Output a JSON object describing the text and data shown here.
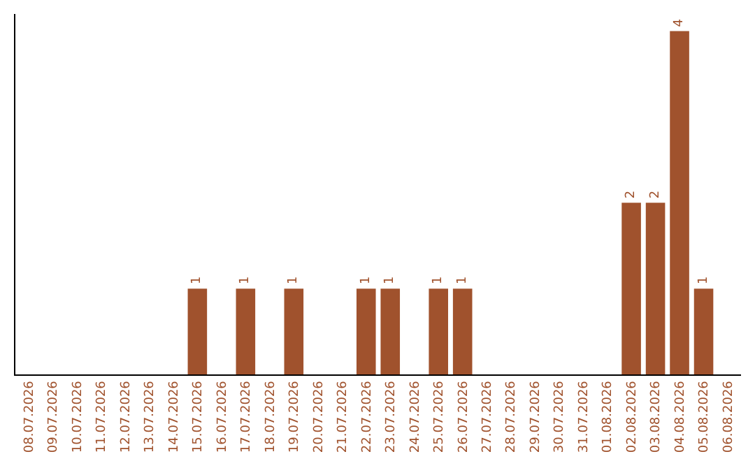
{
  "chart_data": {
    "type": "bar",
    "categories": [
      "08.07.2026",
      "09.07.2026",
      "10.07.2026",
      "11.07.2026",
      "12.07.2026",
      "13.07.2026",
      "14.07.2026",
      "15.07.2026",
      "16.07.2026",
      "17.07.2026",
      "18.07.2026",
      "19.07.2026",
      "20.07.2026",
      "21.07.2026",
      "22.07.2026",
      "23.07.2026",
      "24.07.2026",
      "25.07.2026",
      "26.07.2026",
      "27.07.2026",
      "28.07.2026",
      "29.07.2026",
      "30.07.2026",
      "31.07.2026",
      "01.08.2026",
      "02.08.2026",
      "03.08.2026",
      "04.08.2026",
      "05.08.2026",
      "06.08.2026"
    ],
    "values": [
      0,
      0,
      0,
      0,
      0,
      0,
      0,
      1,
      0,
      1,
      0,
      1,
      0,
      0,
      1,
      1,
      0,
      1,
      1,
      0,
      0,
      0,
      0,
      0,
      0,
      2,
      2,
      4,
      1,
      0
    ],
    "value_labels": [
      null,
      null,
      null,
      null,
      null,
      null,
      null,
      "1",
      null,
      "1",
      null,
      "1",
      null,
      null,
      "1",
      "1",
      null,
      "1",
      "1",
      null,
      null,
      null,
      null,
      null,
      null,
      "2",
      "2",
      "4",
      "1",
      null
    ],
    "color": "#a0522d",
    "ylim": [
      0,
      4.2
    ],
    "grid": false,
    "legend": false,
    "tick_labels": "x"
  }
}
